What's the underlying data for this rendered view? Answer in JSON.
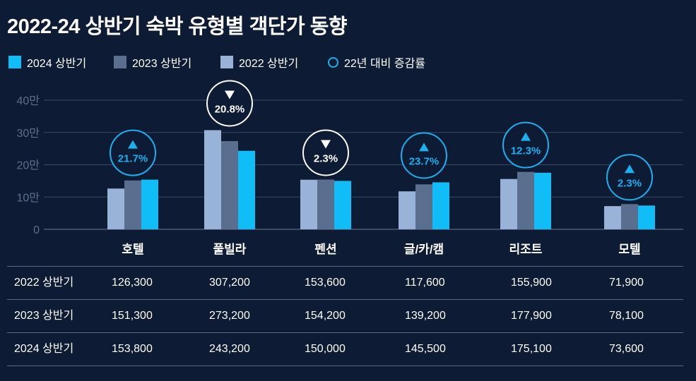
{
  "title": "2022-24 상반기 숙박 유형별 객단가 동향",
  "legend": [
    {
      "label": "2024 상반기",
      "color": "#11bdf6",
      "kind": "square"
    },
    {
      "label": "2023 상반기",
      "color": "#5a6f8f",
      "kind": "square"
    },
    {
      "label": "2022 상반기",
      "color": "#98b2d8",
      "kind": "square"
    },
    {
      "label": "22년 대비 증감률",
      "color": "#1ab0f0",
      "kind": "ring"
    }
  ],
  "chart_data": {
    "type": "bar",
    "title": "2022-24 상반기 숙박 유형별 객단가 동향",
    "categories": [
      "호텔",
      "풀빌라",
      "펜션",
      "글/카/캠",
      "리조트",
      "모텔"
    ],
    "series": [
      {
        "name": "2022 상반기",
        "color": "#98b2d8",
        "values": [
          126300,
          307200,
          153600,
          117600,
          155900,
          71900
        ]
      },
      {
        "name": "2023 상반기",
        "color": "#5a6f8f",
        "values": [
          151300,
          273200,
          154200,
          139200,
          177900,
          78100
        ]
      },
      {
        "name": "2024 상반기",
        "color": "#11bdf6",
        "values": [
          153800,
          243200,
          150000,
          145500,
          175100,
          73600
        ]
      }
    ],
    "yticks": [
      "0",
      "10만",
      "20만",
      "30만",
      "40만"
    ],
    "ylim": [
      0,
      400000
    ],
    "grid": true,
    "legend_position": "top-left",
    "change_vs_2022": [
      {
        "text": "21.7%",
        "direction": "up"
      },
      {
        "text": "20.8%",
        "direction": "down"
      },
      {
        "text": "2.3%",
        "direction": "down"
      },
      {
        "text": "23.7%",
        "direction": "up"
      },
      {
        "text": "12.3%",
        "direction": "up"
      },
      {
        "text": "2.3%",
        "direction": "up"
      }
    ]
  },
  "table": {
    "rows": [
      {
        "label": "2022 상반기",
        "values": [
          "126,300",
          "307,200",
          "153,600",
          "117,600",
          "155,900",
          "71,900"
        ]
      },
      {
        "label": "2023 상반기",
        "values": [
          "151,300",
          "273,200",
          "154,200",
          "139,200",
          "177,900",
          "78,100"
        ]
      },
      {
        "label": "2024 상반기",
        "values": [
          "153,800",
          "243,200",
          "150,000",
          "145,500",
          "175,100",
          "73,600"
        ]
      }
    ]
  }
}
